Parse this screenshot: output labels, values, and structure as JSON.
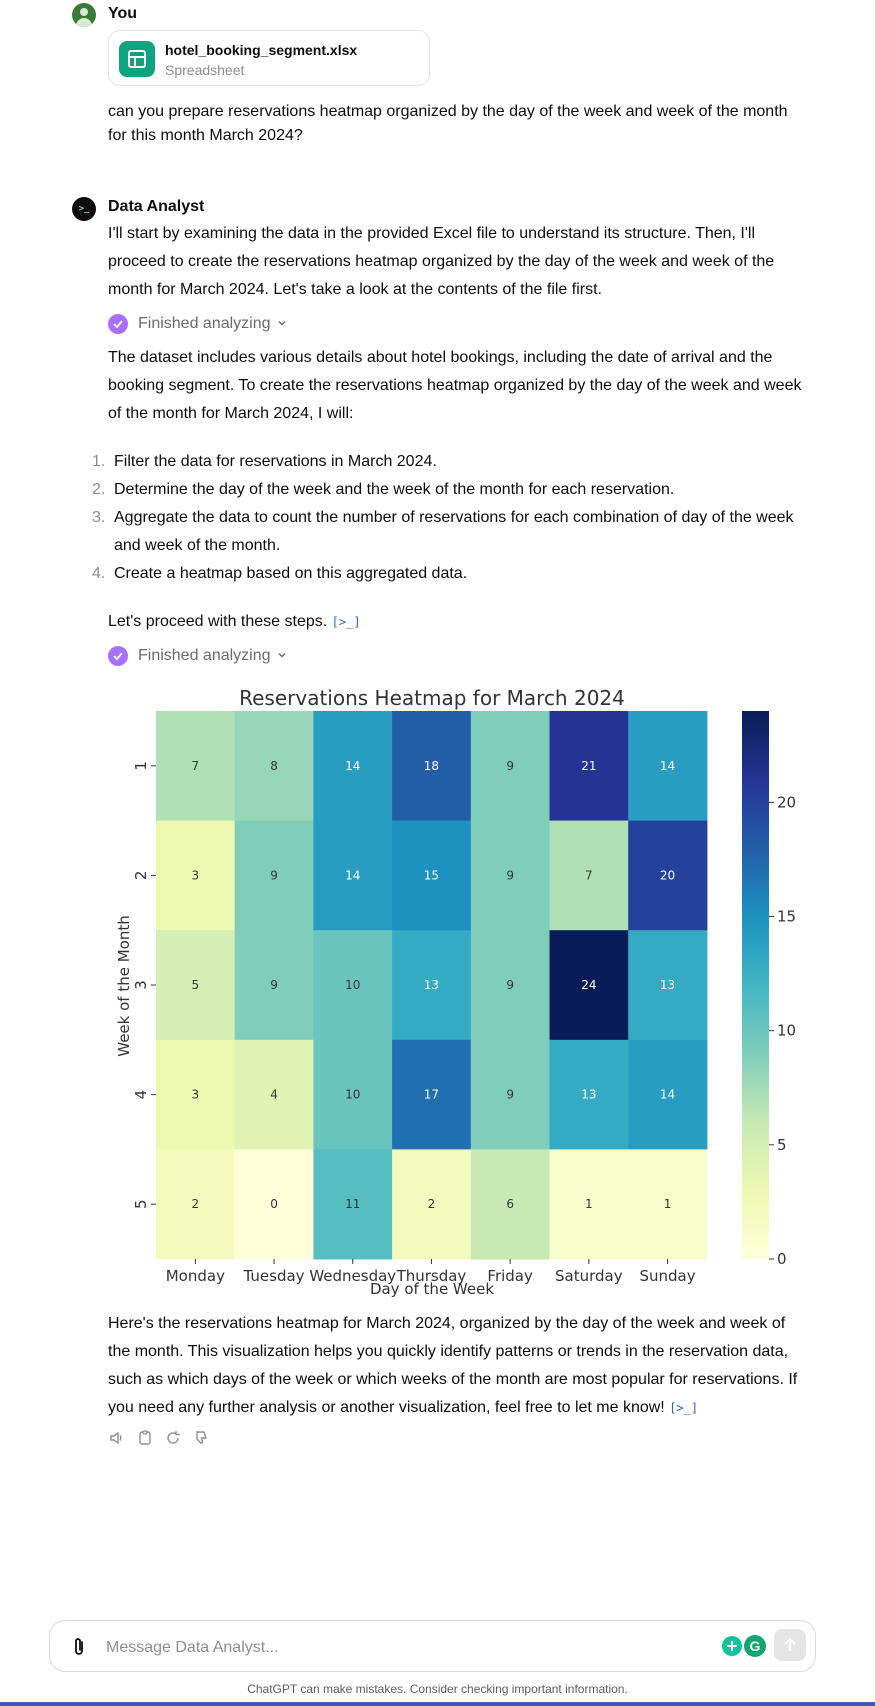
{
  "user": {
    "name": "You",
    "file": {
      "name": "hotel_booking_segment.xlsx",
      "type": "Spreadsheet"
    },
    "message": "can you prepare reservations heatmap organized by the day of the week and week of the month for this month March 2024?"
  },
  "assistant": {
    "name": "Data Analyst",
    "intro": "I'll start by examining the data in the provided Excel file to understand its structure. Then, I'll proceed to create the reservations heatmap organized by the day of the week and week of the month for March 2024. Let's take a look at the contents of the file first.",
    "analyzing_1": "Finished analyzing",
    "dataset_text": "The dataset includes various details about hotel bookings, including the date of arrival and the booking segment. To create the reservations heatmap organized by the day of the week and week of the month for March 2024, I will:",
    "steps": [
      {
        "num": "1.",
        "text": "Filter the data for reservations in March 2024."
      },
      {
        "num": "2.",
        "text": "Determine the day of the week and the week of the month for each reservation."
      },
      {
        "num": "3.",
        "text": "Aggregate the data to count the number of reservations for each combination of day of the week and week of the month."
      },
      {
        "num": "4.",
        "text": "Create a heatmap based on this aggregated data."
      }
    ],
    "proceed": "Let's proceed with these steps.",
    "code_link": "[>_]",
    "analyzing_2": "Finished analyzing",
    "closing": "Here's the reservations heatmap for March 2024, organized by the day of the week and week of the month. This visualization helps you quickly identify patterns or trends in the reservation data, such as which days of the week or which weeks of the month are most popular for reservations. If you need any further analysis or another visualization, feel free to let me know!"
  },
  "composer": {
    "placeholder": "Message Data Analyst..."
  },
  "footer": "ChatGPT can make mistakes. Consider checking important information.",
  "colors": {
    "accent_green": "#10a37f",
    "analyzing_purple": "#a970ff",
    "link_blue": "#2864c8"
  },
  "chart_data": {
    "type": "heatmap",
    "title": "Reservations Heatmap for March 2024",
    "xlabel": "Day of the Week",
    "ylabel": "Week of the Month",
    "x_categories": [
      "Monday",
      "Tuesday",
      "Wednesday",
      "Thursday",
      "Friday",
      "Saturday",
      "Sunday"
    ],
    "y_categories": [
      "1",
      "2",
      "3",
      "4",
      "5"
    ],
    "values": [
      [
        7,
        8,
        14,
        18,
        9,
        21,
        14
      ],
      [
        3,
        9,
        14,
        15,
        9,
        7,
        20
      ],
      [
        5,
        9,
        10,
        13,
        9,
        24,
        13
      ],
      [
        3,
        4,
        10,
        17,
        9,
        13,
        14
      ],
      [
        2,
        0,
        11,
        2,
        6,
        1,
        1
      ]
    ],
    "colormap": "YlGnBu",
    "vmin": 0,
    "vmax": 24,
    "colorbar_ticks": [
      0,
      5,
      10,
      15,
      20
    ]
  }
}
